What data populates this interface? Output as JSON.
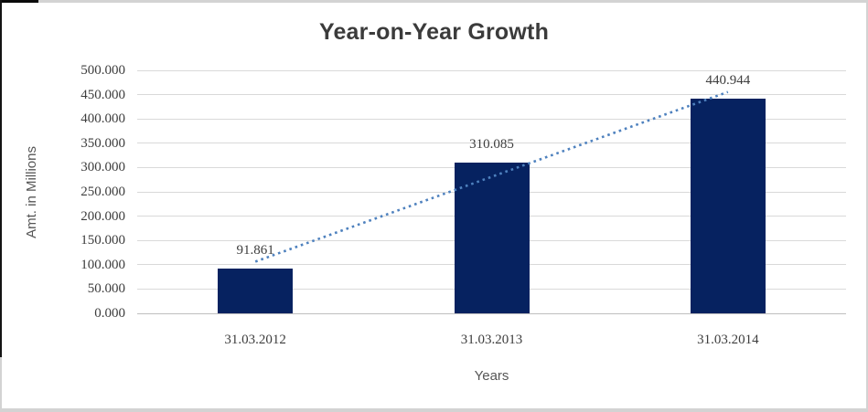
{
  "window": {
    "background": "#ffffff",
    "frame_color": "#d3d3d3",
    "frame_accent_color": "#141414"
  },
  "chart_data": {
    "type": "bar",
    "title": "Year-on-Year Growth",
    "xlabel": "Years",
    "ylabel": "Amt. in Millions",
    "categories": [
      "31.03.2012",
      "31.03.2013",
      "31.03.2014"
    ],
    "values": [
      91.861,
      310.085,
      440.944
    ],
    "data_labels": [
      "91.861",
      "310.085",
      "440.944"
    ],
    "ylim": [
      0,
      500
    ],
    "y_tick_step": 50,
    "y_tick_labels": [
      "0.000",
      "50.000",
      "100.000",
      "150.000",
      "200.000",
      "250.000",
      "300.000",
      "350.000",
      "400.000",
      "450.000",
      "500.000"
    ],
    "grid": true,
    "legend": "none",
    "bar_color": "#062260",
    "gridline_color": "#d9d9d9",
    "axis_line_color": "#bfbfbf",
    "trendline": {
      "kind": "linear",
      "style": "dotted",
      "color": "#4e81be"
    }
  }
}
